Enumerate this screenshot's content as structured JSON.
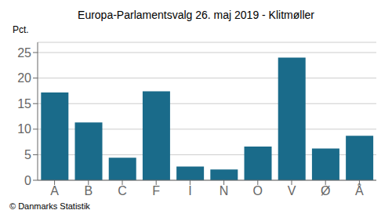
{
  "chart_data": {
    "type": "bar",
    "title": "Europa-Parlamentsvalg 26. maj 2019 - Klitmøller",
    "ylabel": "Pct.",
    "annotations": [
      "© Danmarks Statistik"
    ],
    "categories": [
      "A",
      "B",
      "C",
      "F",
      "I",
      "N",
      "O",
      "V",
      "Ø",
      "Å"
    ],
    "values": [
      17.2,
      11.3,
      4.4,
      17.4,
      2.7,
      2.1,
      6.6,
      24.0,
      6.2,
      8.7
    ],
    "color": "#1a6b8a",
    "ylim": [
      0,
      27
    ],
    "yticks": [
      0,
      5,
      10,
      15,
      20,
      25
    ],
    "grid": true
  }
}
